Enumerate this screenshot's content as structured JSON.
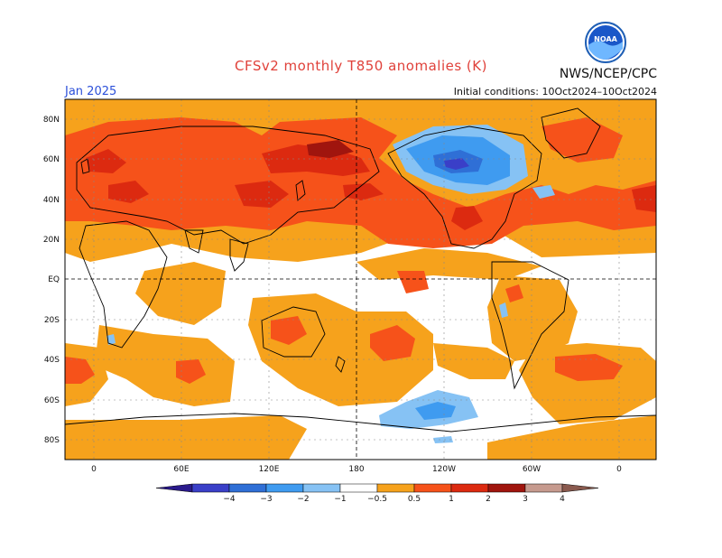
{
  "title": "CFSv2 monthly T850 anomalies (K)",
  "organization": "NWS/NCEP/CPC",
  "logo_text": "NOAA",
  "valid_month": "Jan 2025",
  "initial_conditions": "Initial conditions: 10Oct2024–10Oct2024",
  "latitude_labels": [
    "80N",
    "60N",
    "40N",
    "20N",
    "EQ",
    "20S",
    "40S",
    "60S",
    "80S"
  ],
  "longitude_labels": [
    "0",
    "60E",
    "120E",
    "180",
    "120W",
    "60W",
    "0"
  ],
  "colorbar": {
    "labels": [
      "−4",
      "−3",
      "−2",
      "−1",
      "−0.5",
      "0.5",
      "1",
      "2",
      "3",
      "4"
    ],
    "colors": [
      "#2a1a8c",
      "#3a3fc8",
      "#2f6fd6",
      "#3f9bf0",
      "#86c2f4",
      "#ffffff",
      "#f6a21c",
      "#f6521a",
      "#dc2a10",
      "#a0150e",
      "#c69a8e",
      "#8a5a4e"
    ]
  },
  "anomaly_colors": {
    "weak_warm": "#f6a21c",
    "warm": "#f6521a",
    "strong_warm": "#dc2a10",
    "very_warm": "#a0150e",
    "weak_cold": "#86c2f4",
    "cold": "#3f9bf0",
    "strong_cold": "#2f6fd6",
    "very_cold": "#3a3fc8"
  }
}
